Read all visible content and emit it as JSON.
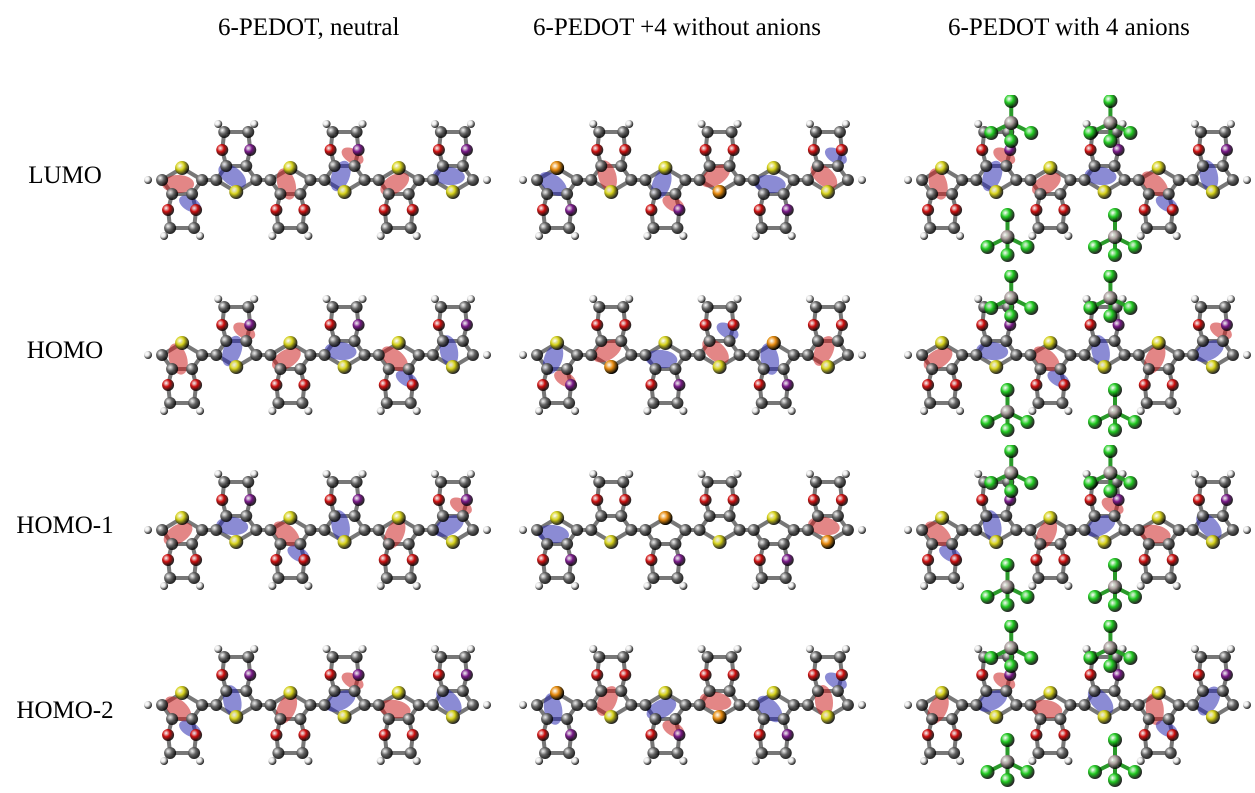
{
  "figure": {
    "columns": [
      {
        "id": "neutral",
        "title": "6-PEDOT, neutral"
      },
      {
        "id": "plus4",
        "title": "6-PEDOT +4 without anions"
      },
      {
        "id": "anions",
        "title": "6-PEDOT with 4 anions"
      }
    ],
    "rows": [
      {
        "id": "lumo",
        "label": "LUMO"
      },
      {
        "id": "homo",
        "label": "HOMO"
      },
      {
        "id": "homo1",
        "label": "HOMO-1"
      },
      {
        "id": "homo2",
        "label": "HOMO-2"
      }
    ],
    "atom_colors": {
      "carbon": "#6b6b6b",
      "oxygen": "#d01010",
      "sulfur": "#d6d21a",
      "hydrogen": "#e6e6e6",
      "chlorine": "#22cc22",
      "boron": "#a89a9a",
      "marker_purple": "#7a1a8a",
      "marker_orange": "#e88a10"
    },
    "orbital_colors": {
      "positive": "#cc2222",
      "negative": "#2b2bb0"
    }
  }
}
